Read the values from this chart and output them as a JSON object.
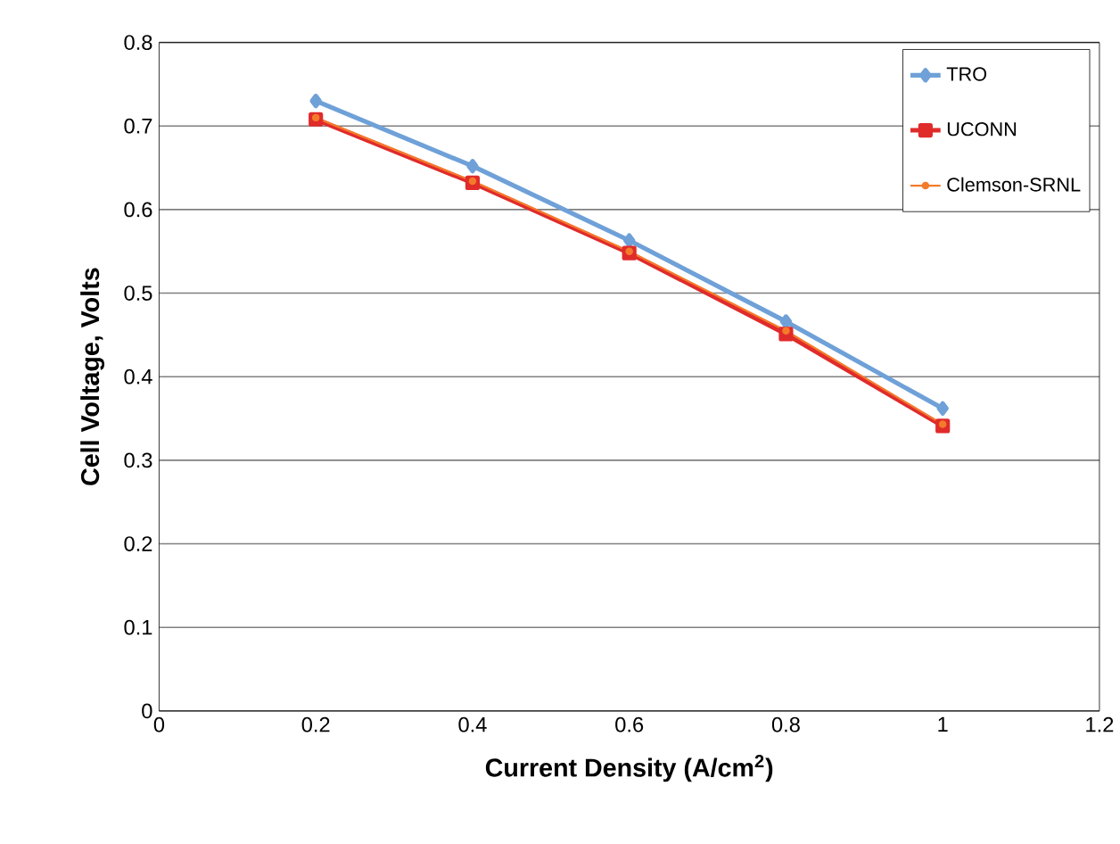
{
  "chart_data": {
    "type": "line",
    "xlabel": "Current Density (A/cm$^{2}$)",
    "ylabel": "Cell Voltage, Volts",
    "x": [
      0.2,
      0.4,
      0.6,
      0.8,
      1.0
    ],
    "series": [
      {
        "name": "TRO",
        "color": "#6fa1d8",
        "marker": "diamond",
        "values": [
          0.73,
          0.652,
          0.563,
          0.466,
          0.362
        ]
      },
      {
        "name": "UCONN",
        "color": "#e02b2b",
        "marker": "square",
        "values": [
          0.708,
          0.632,
          0.548,
          0.451,
          0.341
        ]
      },
      {
        "name": "Clemson-SRNL",
        "color": "#f47b2a",
        "marker": "circle",
        "values": [
          0.71,
          0.634,
          0.55,
          0.455,
          0.343
        ]
      }
    ],
    "xlim": [
      0,
      1.2
    ],
    "xticks": [
      0,
      0.2,
      0.4,
      0.6,
      0.8,
      1,
      1.2
    ],
    "ylim": [
      0,
      0.8
    ],
    "yticks": [
      0,
      0.1,
      0.2,
      0.3,
      0.4,
      0.5,
      0.6,
      0.7,
      0.8
    ],
    "grid": "y",
    "legend": "top right",
    "line_style": "solid"
  }
}
